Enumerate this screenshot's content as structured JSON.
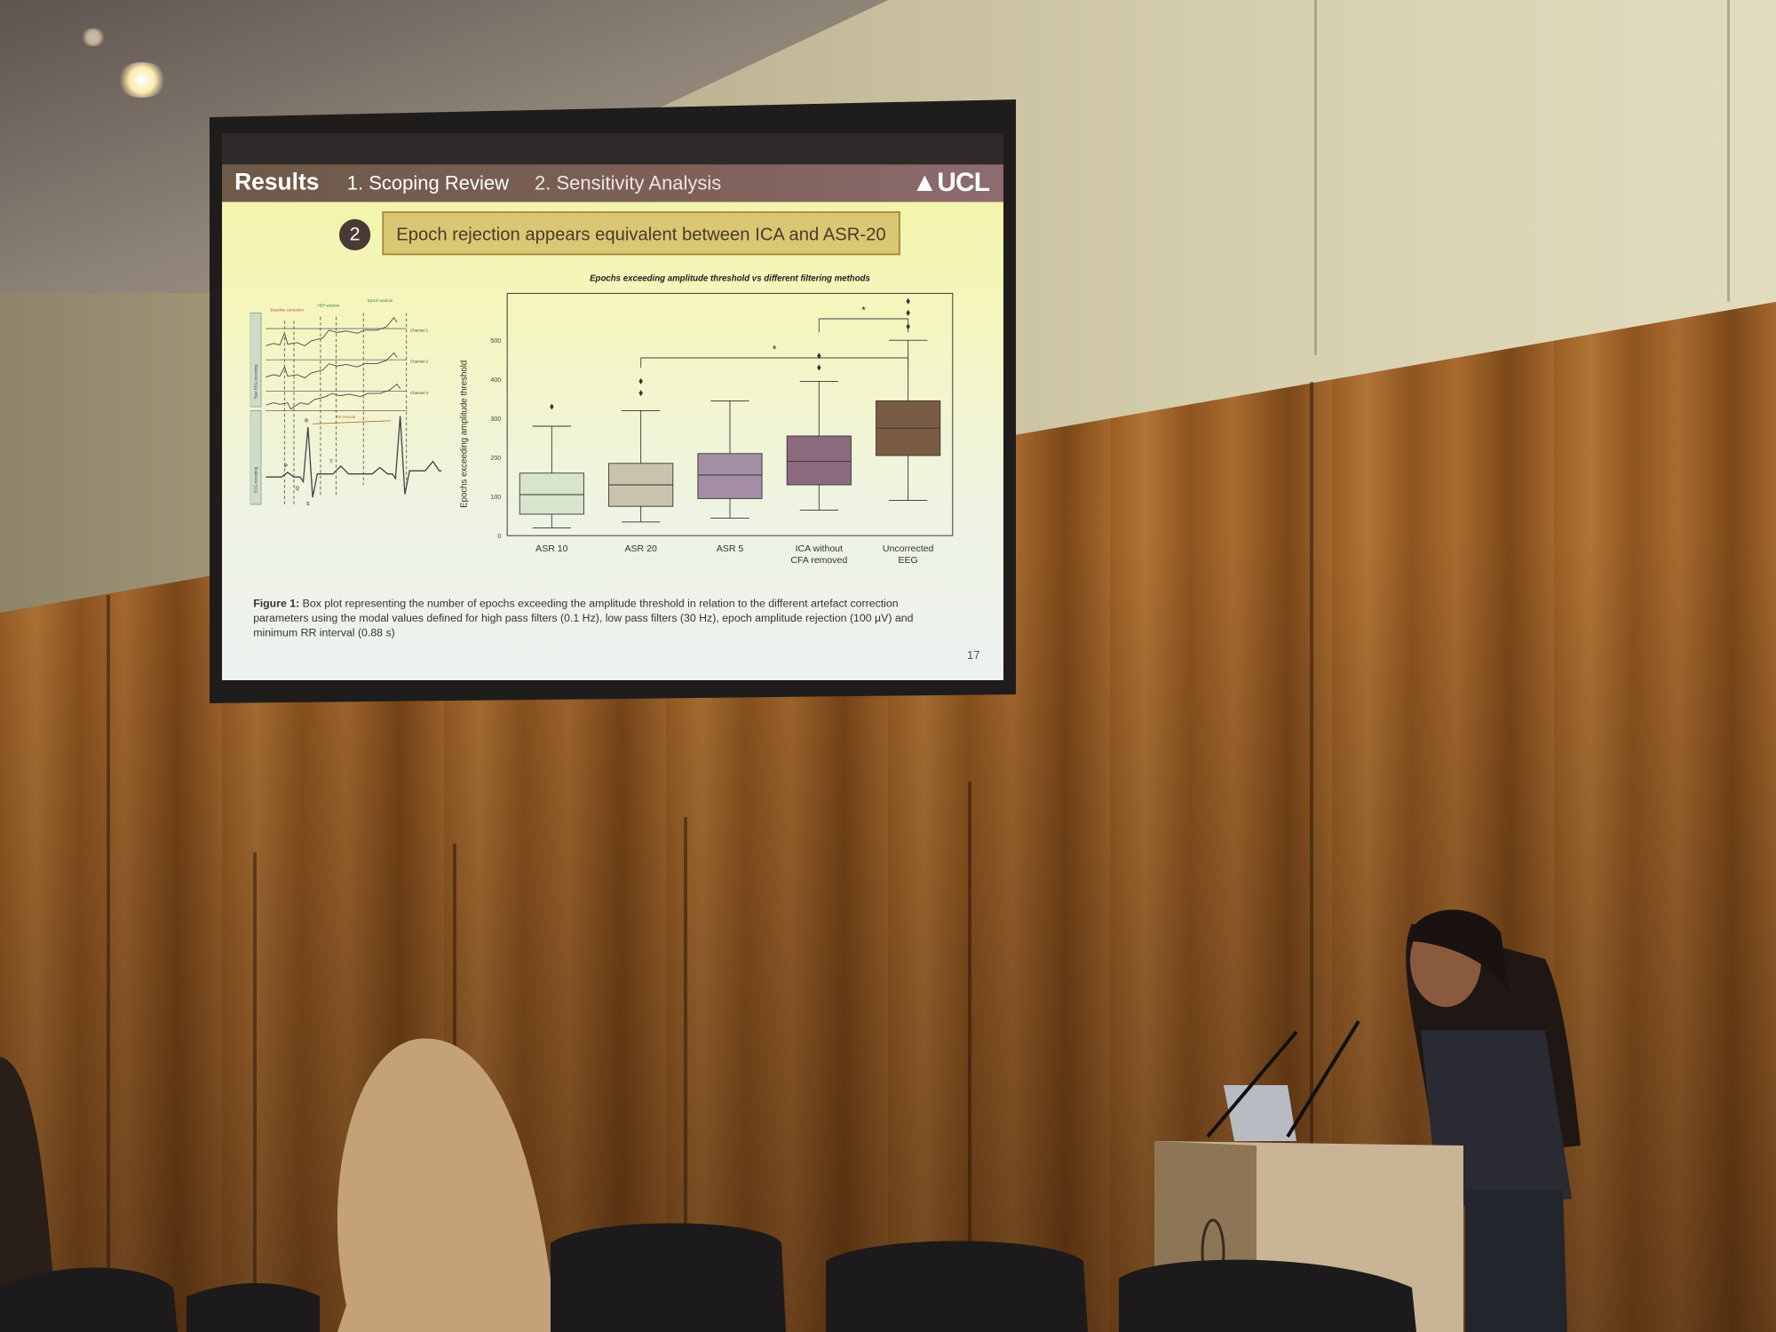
{
  "slide": {
    "header": {
      "section": "Results",
      "tab1": "1. Scoping Review",
      "tab2": "2. Sensitivity Analysis",
      "logo": "UCL"
    },
    "point_number": "2",
    "point_title": "Epoch rejection appears equivalent between ICA and ASR-20",
    "diagram": {
      "side_labels": [
        "Raw EEG recording",
        "ECG recording"
      ],
      "channels": [
        "Channel 1",
        "Channel 2",
        "Channel 3"
      ],
      "window_labels": [
        "Baseline correction",
        "HEP window",
        "Epoch window"
      ],
      "interval_label": "RR interval",
      "waves": [
        "P",
        "Q",
        "R",
        "S",
        "T"
      ]
    },
    "caption_label": "Figure 1:",
    "caption": "Box plot representing the number of epochs exceeding the amplitude threshold in relation to the different artefact correction parameters using the modal values defined for high pass filters (0.1 Hz), low pass filters (30 Hz), epoch amplitude rejection (100 µV) and minimum RR interval (0.88 s)",
    "page_number": "17"
  },
  "chart_data": {
    "type": "box",
    "title": "Epochs exceeding amplitude threshold vs different filtering methods",
    "ylabel": "Epochs exceeding amplitude threshold",
    "xlabel": "",
    "ylim": [
      0,
      620
    ],
    "yticks": [
      0,
      100,
      200,
      300,
      400,
      500
    ],
    "grid": false,
    "categories": [
      "ASR 10",
      "ASR 20",
      "ASR 5",
      "ICA without CFA removed",
      "Uncorrected EEG"
    ],
    "series": [
      {
        "category": "ASR 10",
        "min": 20,
        "q1": 55,
        "median": 105,
        "q3": 160,
        "max": 280,
        "outliers": [
          330
        ],
        "color": "#d8e4cc"
      },
      {
        "category": "ASR 20",
        "min": 35,
        "q1": 75,
        "median": 130,
        "q3": 185,
        "max": 320,
        "outliers": [
          365,
          395
        ],
        "color": "#c9c3ae"
      },
      {
        "category": "ASR 5",
        "min": 45,
        "q1": 95,
        "median": 155,
        "q3": 210,
        "max": 345,
        "outliers": [],
        "color": "#a48ea6"
      },
      {
        "category": "ICA without CFA removed",
        "min": 65,
        "q1": 130,
        "median": 190,
        "q3": 255,
        "max": 395,
        "outliers": [
          430,
          460
        ],
        "color": "#8c6a7e"
      },
      {
        "category": "Uncorrected EEG",
        "min": 90,
        "q1": 205,
        "median": 275,
        "q3": 345,
        "max": 500,
        "outliers": [
          535,
          570,
          600
        ],
        "color": "#7a5c44"
      }
    ],
    "significance": [
      {
        "from": "ASR 20",
        "to": "Uncorrected EEG",
        "label": "*"
      },
      {
        "from": "ICA without CFA removed",
        "to": "Uncorrected EEG",
        "label": "*"
      }
    ]
  }
}
